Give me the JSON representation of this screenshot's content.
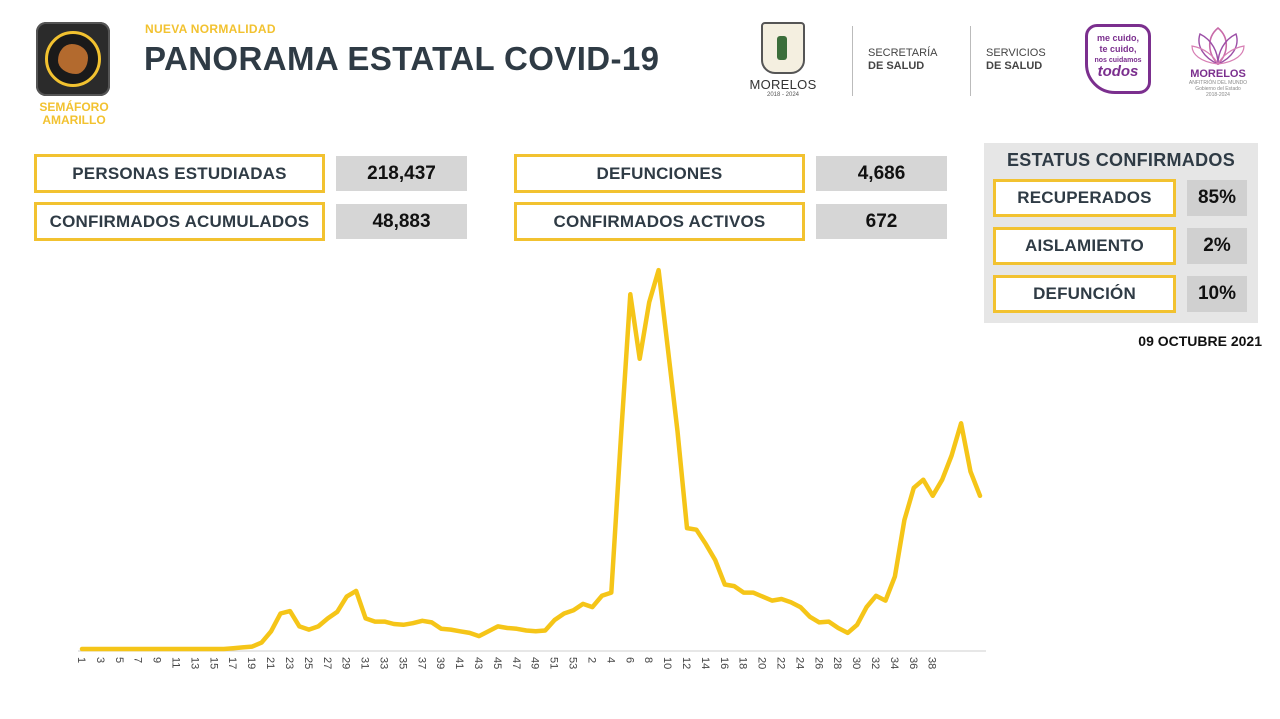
{
  "header": {
    "semaforo_label": "SEMÁFORO AMARILLO",
    "kicker": "NUEVA NORMALIDAD",
    "title": "PANORAMA ESTATAL COVID-19"
  },
  "logos": {
    "gov_name": "MORELOS",
    "gov_years": "2018 - 2024",
    "secretaria_line1": "SECRETARÍA",
    "secretaria_line2": "DE SALUD",
    "servicios_line1": "SERVICIOS",
    "servicios_line2": "DE SALUD",
    "cuido_line1": "me cuido,",
    "cuido_line2": "te cuido,",
    "cuido_line3": "nos cuidamos",
    "cuido_line4": "todos",
    "morelos_brand": "MORELOS",
    "morelos_sub1": "ANFITRIÓN DEL MUNDO",
    "morelos_sub2": "Gobierno del Estado",
    "morelos_sub3": "2018-2024"
  },
  "stats": [
    {
      "label": "PERSONAS ESTUDIADAS",
      "value": "218,437"
    },
    {
      "label": "CONFIRMADOS ACUMULADOS",
      "value": "48,883"
    },
    {
      "label": "DEFUNCIONES",
      "value": "4,686"
    },
    {
      "label": "CONFIRMADOS ACTIVOS",
      "value": "672"
    }
  ],
  "status": {
    "title": "ESTATUS CONFIRMADOS",
    "items": [
      {
        "label": "RECUPERADOS",
        "value": "85%"
      },
      {
        "label": "AISLAMIENTO",
        "value": "2%"
      },
      {
        "label": "DEFUNCIÓN",
        "value": "10%"
      }
    ]
  },
  "date": "09 OCTUBRE 2021",
  "colors": {
    "accent": "#f2c230",
    "title": "#2f3b45",
    "line": "#f5c518"
  },
  "chart_data": {
    "type": "line",
    "title": "",
    "xlabel": "",
    "ylabel": "",
    "grid": false,
    "tick_labels": [
      "1",
      "3",
      "5",
      "7",
      "9",
      "11",
      "13",
      "15",
      "17",
      "19",
      "21",
      "23",
      "25",
      "27",
      "29",
      "31",
      "33",
      "35",
      "37",
      "39",
      "41",
      "43",
      "45",
      "47",
      "49",
      "51",
      "53",
      "2",
      "4",
      "6",
      "8",
      "10",
      "12",
      "14",
      "16",
      "18",
      "20",
      "22",
      "24",
      "26",
      "28",
      "30",
      "32",
      "34",
      "36",
      "38"
    ],
    "series": [
      {
        "values": [
          0,
          0,
          0,
          0,
          0,
          0,
          0,
          0,
          0,
          0,
          0,
          0,
          0,
          0,
          0,
          0,
          1,
          2,
          3,
          8,
          22,
          44,
          47,
          28,
          24,
          28,
          38,
          46,
          65,
          72,
          38,
          34,
          34,
          31,
          30,
          32,
          35,
          33,
          25,
          24,
          22,
          20,
          16,
          22,
          28,
          26,
          25,
          23,
          22,
          23,
          36,
          44,
          48,
          56,
          52,
          66,
          70,
          260,
          440,
          360,
          430,
          470,
          370,
          270,
          150,
          148,
          130,
          110,
          80,
          78,
          70,
          70,
          65,
          60,
          62,
          58,
          52,
          40,
          33,
          34,
          26,
          20,
          30,
          52,
          66,
          60,
          90,
          160,
          200,
          210,
          190,
          210,
          240,
          280,
          220,
          190
        ]
      }
    ],
    "ylim": [
      0,
      480
    ]
  }
}
